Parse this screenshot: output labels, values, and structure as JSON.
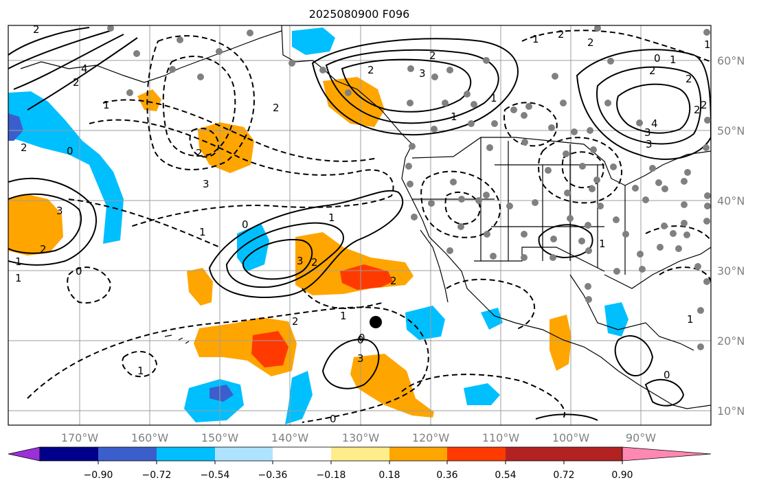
{
  "title": "2025080900 F096",
  "map": {
    "lat_labels": [
      "60°N",
      "50°N",
      "40°N",
      "30°N",
      "20°N",
      "10°N"
    ],
    "lon_labels": [
      "170°W",
      "160°W",
      "150°W",
      "140°W",
      "130°W",
      "120°W",
      "110°W",
      "100°W",
      "90°W"
    ],
    "grid": true,
    "colors": {
      "border": "#000000",
      "grid": "#9e9e9e",
      "station_dot": "#808080",
      "marker": "#000000"
    }
  },
  "colorbar": {
    "tick_labels": [
      "−0.90",
      "−0.72",
      "−0.54",
      "−0.36",
      "−0.18",
      "0.18",
      "0.36",
      "0.54",
      "0.72",
      "0.90"
    ],
    "under_color": "#9b30d9",
    "over_color": "#ff88b3",
    "bin_colors": [
      "#00008b",
      "#3a5fcd",
      "#00bfff",
      "#aee3ff",
      "#ffffff",
      "#ffec8b",
      "#ffa500",
      "#ff3a00",
      "#b22222"
    ]
  },
  "contour_labels": [
    "2",
    "2",
    "3",
    "2",
    "2",
    "4",
    "2",
    "1",
    "1",
    "0",
    "3",
    "2",
    "1",
    "1",
    "0",
    "1",
    "2",
    "2",
    "3",
    "2",
    "2",
    "3",
    "2",
    "1",
    "1",
    "0",
    "4",
    "3",
    "3",
    "2",
    "2",
    "2",
    "1",
    "0",
    "1",
    "0",
    "3",
    "2",
    "1",
    "2",
    "2",
    "1",
    "0",
    "0",
    "1",
    "1",
    "1",
    "0"
  ]
}
